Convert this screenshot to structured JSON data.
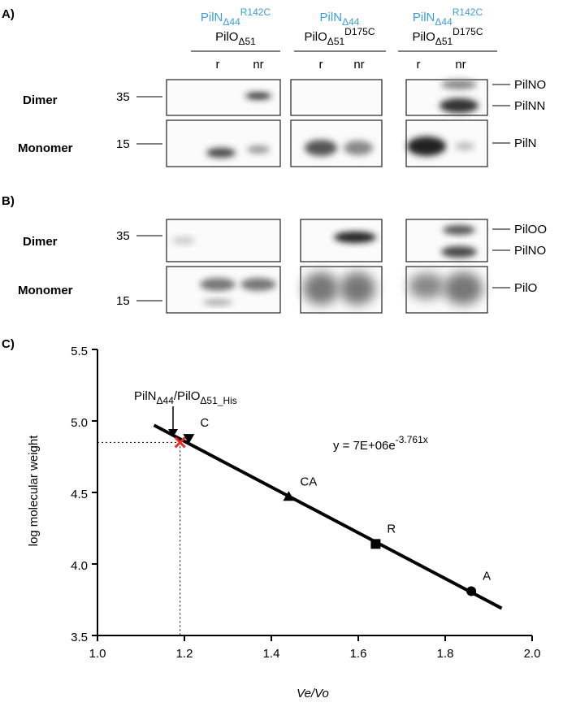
{
  "panel_a": {
    "label": "A)",
    "headers": [
      {
        "line1": {
          "base": "PilN",
          "sub": "Δ44",
          "sup": "R142C",
          "color": "#3a9fd6"
        },
        "line2": {
          "base": "PilO",
          "sub": "Δ51",
          "color": "#000000"
        }
      },
      {
        "line1": {
          "base": "PilN",
          "sub": "Δ44",
          "color": "#3a9fd6"
        },
        "line2": {
          "base": "PilO",
          "sub": "Δ51",
          "sup": "D175C",
          "color": "#000000"
        }
      },
      {
        "line1": {
          "base": "PilN",
          "sub": "Δ44",
          "sup": "R142C",
          "color": "#3a9fd6"
        },
        "line2": {
          "base": "PilO",
          "sub": "Δ51",
          "sup": "D175C",
          "color": "#000000"
        }
      }
    ],
    "lanes": [
      "r",
      "nr",
      "r",
      "nr",
      "r",
      "nr"
    ],
    "rows": [
      "Dimer",
      "Monomer"
    ],
    "markers": [
      "35",
      "15"
    ],
    "bands": [
      "PilNO",
      "PilNN",
      "PilN"
    ]
  },
  "panel_b": {
    "label": "B)",
    "rows": [
      "Dimer",
      "Monomer"
    ],
    "markers": [
      "35",
      "15"
    ],
    "bands": [
      "PilOO",
      "PilNO",
      "PilO"
    ]
  },
  "chart_data": {
    "type": "scatter",
    "label": "C)",
    "x_label": "Ve/Vo",
    "y_label": "log molecular weight",
    "xlim": [
      1.0,
      2.0
    ],
    "xticks": [
      {
        "value": 1.0,
        "label": "1.0"
      },
      1.2,
      1.4,
      1.6,
      1.8,
      {
        "value": 2.0,
        "label": "2.0"
      }
    ],
    "ylim": [
      3.5,
      5.5
    ],
    "yticks": [
      3.5,
      {
        "value": 4.0,
        "label": "4.0"
      },
      4.5,
      {
        "value": 5.0,
        "label": "5.0"
      },
      5.5
    ],
    "x": [
      1.21,
      1.44,
      1.64,
      1.86
    ],
    "values": [
      4.88,
      4.47,
      4.14,
      3.81
    ],
    "point_labels": [
      "C",
      "CA",
      "R",
      "A"
    ],
    "markers": [
      "triangle-down",
      "triangle-up",
      "square",
      "circle"
    ],
    "color": "#000000",
    "fit": {
      "x": [
        1.13,
        1.93
      ],
      "values": [
        4.97,
        3.69
      ]
    },
    "sample": {
      "x": 1.19,
      "value": 4.85,
      "color": "#e8312a"
    },
    "annotation": [
      "PilN",
      "Δ44",
      "/PilO",
      "Δ51_His"
    ],
    "equation": [
      "y = 7E+06e",
      "-3.761x"
    ]
  }
}
